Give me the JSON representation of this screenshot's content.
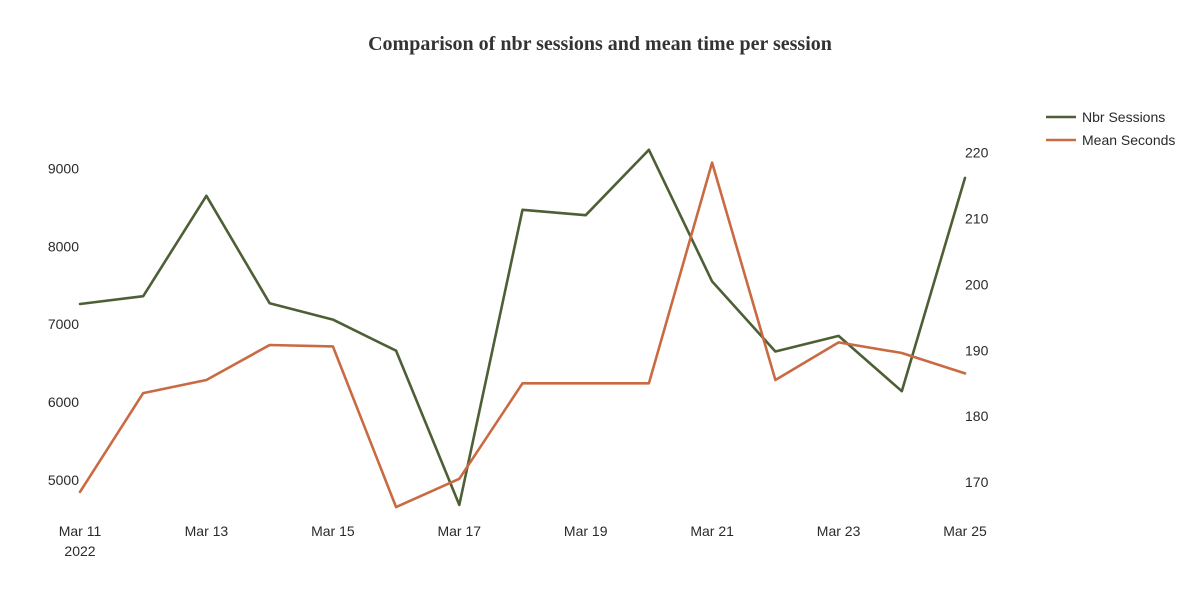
{
  "chart_data": {
    "type": "line",
    "title": "Comparison of nbr sessions and mean time per session",
    "x": [
      "2022-03-11",
      "2022-03-12",
      "2022-03-13",
      "2022-03-14",
      "2022-03-15",
      "2022-03-16",
      "2022-03-17",
      "2022-03-18",
      "2022-03-19",
      "2022-03-20",
      "2022-03-21",
      "2022-03-22",
      "2022-03-23",
      "2022-03-24",
      "2022-03-25"
    ],
    "x_ticks": [
      {
        "date": "2022-03-11",
        "label": "Mar 11",
        "sublabel": "2022"
      },
      {
        "date": "2022-03-13",
        "label": "Mar 13"
      },
      {
        "date": "2022-03-15",
        "label": "Mar 15"
      },
      {
        "date": "2022-03-17",
        "label": "Mar 17"
      },
      {
        "date": "2022-03-19",
        "label": "Mar 19"
      },
      {
        "date": "2022-03-21",
        "label": "Mar 21"
      },
      {
        "date": "2022-03-23",
        "label": "Mar 23"
      },
      {
        "date": "2022-03-25",
        "label": "Mar 25"
      }
    ],
    "y_left": {
      "range": [
        4550,
        9880
      ],
      "ticks": [
        "5000",
        "6000",
        "7000",
        "8000",
        "9000"
      ]
    },
    "y_right": {
      "range": [
        165,
        228
      ],
      "ticks": [
        "170",
        "180",
        "190",
        "200",
        "210",
        "220"
      ]
    },
    "grid": false,
    "legend_position": "top-right",
    "series": [
      {
        "name": "Nbr Sessions",
        "axis": "left",
        "color": "#4d5f35",
        "values": [
          7260,
          7360,
          8650,
          7270,
          7060,
          6660,
          4680,
          8470,
          8400,
          9240,
          7550,
          6650,
          6850,
          6140,
          8880
        ]
      },
      {
        "name": "Mean Seconds",
        "axis": "right",
        "color": "#c96a42",
        "values": [
          168.5,
          183.5,
          185.5,
          190.8,
          190.6,
          166.2,
          170.5,
          185.0,
          185.0,
          185.0,
          218.5,
          185.5,
          191.2,
          189.6,
          186.5
        ]
      }
    ]
  }
}
